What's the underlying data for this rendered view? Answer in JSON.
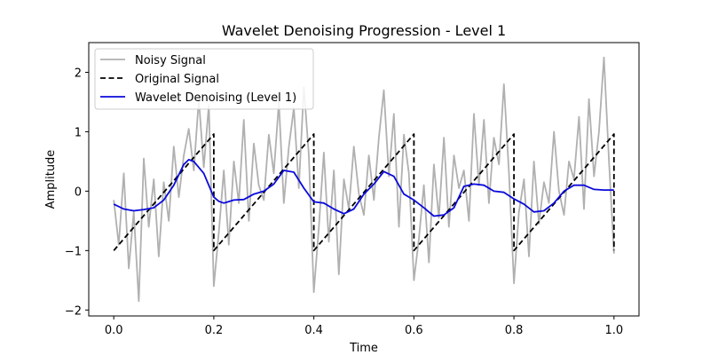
{
  "chart_data": {
    "type": "line",
    "title": "Wavelet Denoising Progression - Level 1",
    "xlabel": "Time",
    "ylabel": "Amplitude",
    "xlim": [
      -0.05,
      1.05
    ],
    "ylim": [
      -2.1,
      2.5
    ],
    "xticks": [
      0.0,
      0.2,
      0.4,
      0.6,
      0.8,
      1.0
    ],
    "xtick_labels": [
      "0.0",
      "0.2",
      "0.4",
      "0.6",
      "0.8",
      "1.0"
    ],
    "yticks": [
      -2,
      -1,
      0,
      1,
      2
    ],
    "ytick_labels": [
      "−2",
      "−1",
      "0",
      "1",
      "2"
    ],
    "grid": false,
    "legend_position": "top-left",
    "series": [
      {
        "name": "Noisy Signal",
        "color": "#b0b0b0",
        "style": "solid",
        "x": [
          0.0,
          0.01,
          0.02,
          0.03,
          0.04,
          0.05,
          0.06,
          0.07,
          0.08,
          0.09,
          0.1,
          0.11,
          0.12,
          0.13,
          0.14,
          0.15,
          0.16,
          0.17,
          0.18,
          0.19,
          0.2,
          0.21,
          0.22,
          0.23,
          0.24,
          0.25,
          0.26,
          0.27,
          0.28,
          0.29,
          0.3,
          0.31,
          0.32,
          0.33,
          0.34,
          0.35,
          0.36,
          0.37,
          0.38,
          0.39,
          0.4,
          0.41,
          0.42,
          0.43,
          0.44,
          0.45,
          0.46,
          0.47,
          0.48,
          0.49,
          0.5,
          0.51,
          0.52,
          0.53,
          0.54,
          0.55,
          0.56,
          0.57,
          0.58,
          0.59,
          0.6,
          0.61,
          0.62,
          0.63,
          0.64,
          0.65,
          0.66,
          0.67,
          0.68,
          0.69,
          0.7,
          0.71,
          0.72,
          0.73,
          0.74,
          0.75,
          0.76,
          0.77,
          0.78,
          0.79,
          0.8,
          0.81,
          0.82,
          0.83,
          0.84,
          0.85,
          0.86,
          0.87,
          0.88,
          0.89,
          0.9,
          0.91,
          0.92,
          0.93,
          0.94,
          0.95,
          0.96,
          0.97,
          0.98,
          0.99,
          1.0
        ],
        "values": [
          -0.15,
          -0.9,
          0.3,
          -1.3,
          -0.35,
          -1.85,
          0.55,
          -0.6,
          0.2,
          -1.1,
          0.15,
          -0.5,
          0.75,
          -0.1,
          0.6,
          1.05,
          0.35,
          1.55,
          0.4,
          1.45,
          -1.6,
          -0.7,
          0.35,
          -0.9,
          0.5,
          -0.2,
          1.2,
          -0.5,
          0.8,
          0.1,
          -0.15,
          0.95,
          0.3,
          1.5,
          -0.2,
          0.75,
          1.4,
          0.05,
          1.75,
          0.6,
          -1.7,
          -0.6,
          0.65,
          -0.85,
          0.35,
          -1.4,
          0.2,
          -0.3,
          0.75,
          -0.05,
          -0.4,
          0.6,
          -0.15,
          0.9,
          1.7,
          0.25,
          1.3,
          -0.6,
          0.95,
          0.3,
          -1.5,
          -0.8,
          0.1,
          -1.2,
          0.45,
          -0.45,
          0.9,
          -0.6,
          0.6,
          0.05,
          0.35,
          -0.5,
          1.3,
          0.1,
          1.2,
          -0.2,
          0.9,
          0.45,
          1.8,
          0.3,
          -1.55,
          -0.35,
          0.2,
          -1.1,
          0.5,
          -0.55,
          0.15,
          -0.2,
          1.0,
          0.0,
          -0.4,
          0.5,
          0.2,
          1.25,
          -0.3,
          1.55,
          0.25,
          1.0,
          2.25,
          0.5,
          -1.05
        ]
      },
      {
        "name": "Original Signal",
        "color": "#000000",
        "style": "dashed",
        "x": [
          0.0,
          0.2,
          0.2,
          0.4,
          0.4,
          0.6,
          0.6,
          0.8,
          0.8,
          1.0,
          1.0
        ],
        "values": [
          -1.0,
          0.96,
          -1.0,
          0.96,
          -1.0,
          0.96,
          -1.0,
          0.96,
          -1.0,
          0.96,
          -1.0
        ]
      },
      {
        "name": "Wavelet Denoising (Level 1)",
        "color": "#0a0adc",
        "style": "solid",
        "x": [
          0.0,
          0.02,
          0.04,
          0.06,
          0.08,
          0.1,
          0.12,
          0.14,
          0.15,
          0.16,
          0.18,
          0.2,
          0.21,
          0.22,
          0.24,
          0.26,
          0.28,
          0.3,
          0.32,
          0.34,
          0.36,
          0.38,
          0.4,
          0.42,
          0.44,
          0.46,
          0.48,
          0.5,
          0.52,
          0.54,
          0.56,
          0.58,
          0.6,
          0.62,
          0.64,
          0.66,
          0.68,
          0.7,
          0.72,
          0.74,
          0.76,
          0.78,
          0.8,
          0.82,
          0.84,
          0.86,
          0.88,
          0.9,
          0.92,
          0.94,
          0.96,
          0.98,
          1.0
        ],
        "values": [
          -0.22,
          -0.3,
          -0.33,
          -0.31,
          -0.28,
          -0.15,
          0.1,
          0.45,
          0.53,
          0.5,
          0.3,
          -0.1,
          -0.17,
          -0.2,
          -0.15,
          -0.14,
          -0.05,
          0.0,
          0.12,
          0.35,
          0.32,
          0.05,
          -0.18,
          -0.2,
          -0.3,
          -0.38,
          -0.3,
          -0.05,
          0.12,
          0.33,
          0.25,
          -0.05,
          -0.15,
          -0.28,
          -0.42,
          -0.4,
          -0.28,
          0.08,
          0.12,
          0.1,
          0.0,
          -0.02,
          -0.13,
          -0.22,
          -0.35,
          -0.33,
          -0.2,
          0.0,
          0.1,
          0.1,
          0.03,
          0.02,
          0.02
        ]
      }
    ]
  }
}
